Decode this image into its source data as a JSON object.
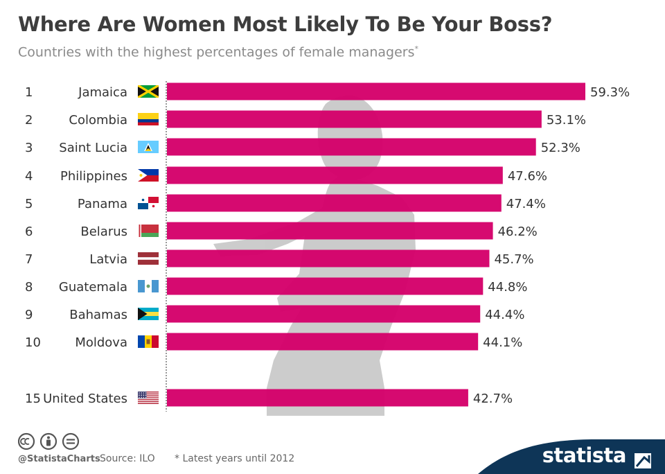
{
  "header": {
    "title": "Where Are Women Most Likely To Be Your Boss?",
    "subtitle": "Countries with the highest percentages of female managers",
    "subtitle_mark": "*"
  },
  "footer": {
    "handle": "@StatistaCharts",
    "source": "Source: ILO",
    "note": "* Latest years until 2012",
    "brand": "statista"
  },
  "colors": {
    "bar": "#d4006a",
    "axis": "#555555",
    "brand_bg": "#0e3557"
  },
  "chart_data": {
    "type": "bar",
    "orientation": "horizontal",
    "title": "Where Are Women Most Likely To Be Your Boss?",
    "subtitle": "Countries with the highest percentages of female managers*",
    "unit": "%",
    "rows": [
      {
        "rank": "1",
        "country": "Jamaica",
        "value": 59.3,
        "label": "59.3%",
        "flag": "jamaica-flag"
      },
      {
        "rank": "2",
        "country": "Colombia",
        "value": 53.1,
        "label": "53.1%",
        "flag": "colombia-flag"
      },
      {
        "rank": "3",
        "country": "Saint Lucia",
        "value": 52.3,
        "label": "52.3%",
        "flag": "saint-lucia-flag"
      },
      {
        "rank": "4",
        "country": "Philippines",
        "value": 47.6,
        "label": "47.6%",
        "flag": "philippines-flag"
      },
      {
        "rank": "5",
        "country": "Panama",
        "value": 47.4,
        "label": "47.4%",
        "flag": "panama-flag"
      },
      {
        "rank": "6",
        "country": "Belarus",
        "value": 46.2,
        "label": "46.2%",
        "flag": "belarus-flag"
      },
      {
        "rank": "7",
        "country": "Latvia",
        "value": 45.7,
        "label": "45.7%",
        "flag": "latvia-flag"
      },
      {
        "rank": "8",
        "country": "Guatemala",
        "value": 44.8,
        "label": "44.8%",
        "flag": "guatemala-flag"
      },
      {
        "rank": "9",
        "country": "Bahamas",
        "value": 44.4,
        "label": "44.4%",
        "flag": "bahamas-flag"
      },
      {
        "rank": "10",
        "country": "Moldova",
        "value": 44.1,
        "label": "44.1%",
        "flag": "moldova-flag"
      },
      {
        "rank": "15",
        "country": "United States",
        "value": 42.7,
        "label": "42.7%",
        "flag": "united-states-flag"
      }
    ],
    "xlim": [
      0,
      59.3
    ],
    "grid": false,
    "legend": "none"
  }
}
